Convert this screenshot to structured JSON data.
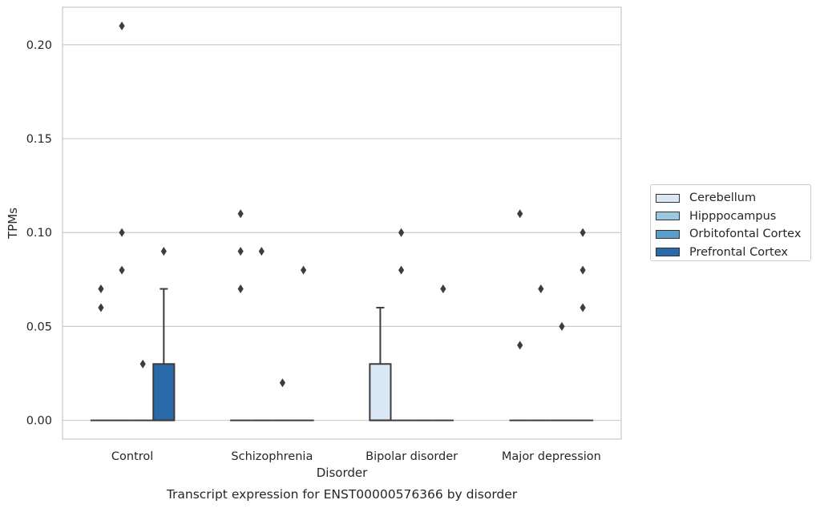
{
  "chart_data": {
    "type": "box",
    "title": "",
    "xlabel": "Disorder",
    "ylabel": "TPMs",
    "caption": "Transcript expression for ENST00000576366 by disorder",
    "categories": [
      "Control",
      "Schizophrenia",
      "Bipolar disorder",
      "Major depression"
    ],
    "ylim": [
      -0.01,
      0.22
    ],
    "yticks": [
      0.0,
      0.05,
      0.1,
      0.15,
      0.2
    ],
    "ytick_labels": [
      "0.00",
      "0.05",
      "0.10",
      "0.15",
      "0.20"
    ],
    "grid": "horizontal",
    "legend_position": "right-center",
    "series": [
      {
        "name": "Cerebellum",
        "color": "#dae8f5",
        "boxes": [
          {
            "category": "Control",
            "q1": 0,
            "median": 0,
            "q3": 0,
            "whisker_low": 0,
            "whisker_high": 0,
            "outliers": [
              0.06,
              0.07
            ]
          },
          {
            "category": "Schizophrenia",
            "q1": 0,
            "median": 0,
            "q3": 0,
            "whisker_low": 0,
            "whisker_high": 0,
            "outliers": [
              0.07,
              0.09,
              0.11
            ]
          },
          {
            "category": "Bipolar disorder",
            "q1": 0,
            "median": 0,
            "q3": 0.03,
            "whisker_low": 0,
            "whisker_high": 0.06,
            "outliers": []
          },
          {
            "category": "Major depression",
            "q1": 0,
            "median": 0,
            "q3": 0,
            "whisker_low": 0,
            "whisker_high": 0,
            "outliers": [
              0.04,
              0.11
            ]
          }
        ]
      },
      {
        "name": "Hipppocampus",
        "color": "#9ac8e0",
        "boxes": [
          {
            "category": "Control",
            "q1": 0,
            "median": 0,
            "q3": 0,
            "whisker_low": 0,
            "whisker_high": 0,
            "outliers": [
              0.08,
              0.1,
              0.21
            ]
          },
          {
            "category": "Schizophrenia",
            "q1": 0,
            "median": 0,
            "q3": 0,
            "whisker_low": 0,
            "whisker_high": 0,
            "outliers": [
              0.09
            ]
          },
          {
            "category": "Bipolar disorder",
            "q1": 0,
            "median": 0,
            "q3": 0,
            "whisker_low": 0,
            "whisker_high": 0,
            "outliers": [
              0.08,
              0.1
            ]
          },
          {
            "category": "Major depression",
            "q1": 0,
            "median": 0,
            "q3": 0,
            "whisker_low": 0,
            "whisker_high": 0,
            "outliers": [
              0.07
            ]
          }
        ]
      },
      {
        "name": "Orbitofontal Cortex",
        "color": "#5a9ec9",
        "boxes": [
          {
            "category": "Control",
            "q1": 0,
            "median": 0,
            "q3": 0,
            "whisker_low": 0,
            "whisker_high": 0,
            "outliers": [
              0.03
            ]
          },
          {
            "category": "Schizophrenia",
            "q1": 0,
            "median": 0,
            "q3": 0,
            "whisker_low": 0,
            "whisker_high": 0,
            "outliers": [
              0.02
            ]
          },
          {
            "category": "Bipolar disorder",
            "q1": 0,
            "median": 0,
            "q3": 0,
            "whisker_low": 0,
            "whisker_high": 0,
            "outliers": []
          },
          {
            "category": "Major depression",
            "q1": 0,
            "median": 0,
            "q3": 0,
            "whisker_low": 0,
            "whisker_high": 0,
            "outliers": [
              0.05
            ]
          }
        ]
      },
      {
        "name": "Prefrontal Cortex",
        "color": "#2b6aa8",
        "boxes": [
          {
            "category": "Control",
            "q1": 0,
            "median": 0,
            "q3": 0.03,
            "whisker_low": 0,
            "whisker_high": 0.07,
            "outliers": [
              0.09
            ]
          },
          {
            "category": "Schizophrenia",
            "q1": 0,
            "median": 0,
            "q3": 0,
            "whisker_low": 0,
            "whisker_high": 0,
            "outliers": [
              0.08
            ]
          },
          {
            "category": "Bipolar disorder",
            "q1": 0,
            "median": 0,
            "q3": 0,
            "whisker_low": 0,
            "whisker_high": 0,
            "outliers": [
              0.07
            ]
          },
          {
            "category": "Major depression",
            "q1": 0,
            "median": 0,
            "q3": 0,
            "whisker_low": 0,
            "whisker_high": 0,
            "outliers": [
              0.06,
              0.08,
              0.1
            ]
          }
        ]
      }
    ]
  }
}
